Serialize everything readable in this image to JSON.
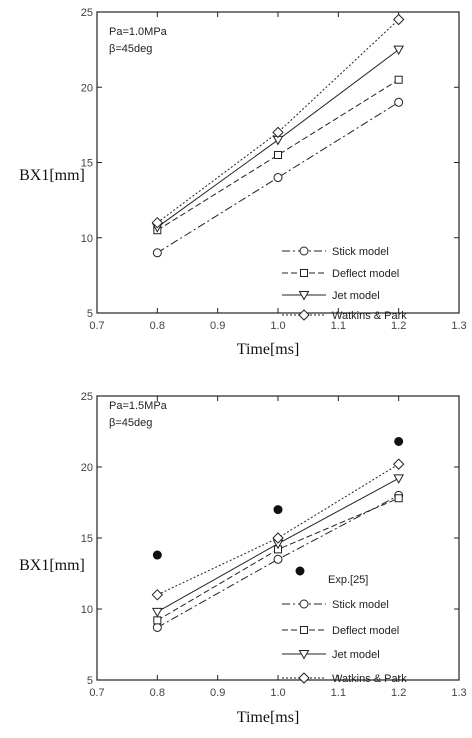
{
  "chart_data": [
    {
      "type": "line",
      "xlabel": "Time[ms]",
      "ylabel": "BX1[mm]",
      "xlim": [
        0.7,
        1.3
      ],
      "ylim": [
        5,
        25
      ],
      "xticks": [
        "0.7",
        "0.8",
        "0.9",
        "1.0",
        "1.1",
        "1.2",
        "1.3"
      ],
      "yticks": [
        "5",
        "10",
        "15",
        "20",
        "25"
      ],
      "annotations": [
        "Pa=1.0MPa",
        "β=45deg"
      ],
      "legend_position": "bottom-right",
      "x": [
        0.8,
        1.0,
        1.2
      ],
      "series": [
        {
          "name": "Stick model",
          "marker": "circle",
          "dash": "8,3,2,3",
          "values": [
            9.0,
            14.0,
            19.0
          ]
        },
        {
          "name": "Deflect model",
          "marker": "square",
          "dash": "6,3",
          "values": [
            10.5,
            15.5,
            20.5
          ]
        },
        {
          "name": "Jet model",
          "marker": "triangle-down",
          "dash": "",
          "values": [
            10.7,
            16.5,
            22.5
          ]
        },
        {
          "name": "Watkins & Park",
          "marker": "diamond",
          "dash": "2,2",
          "values": [
            11.0,
            17.0,
            24.5
          ]
        }
      ]
    },
    {
      "type": "line",
      "xlabel": "Time[ms]",
      "ylabel": "BX1[mm]",
      "xlim": [
        0.7,
        1.3
      ],
      "ylim": [
        5,
        25
      ],
      "xticks": [
        "0.7",
        "0.8",
        "0.9",
        "1.0",
        "1.1",
        "1.2",
        "1.3"
      ],
      "yticks": [
        "5",
        "10",
        "15",
        "20",
        "25"
      ],
      "annotations": [
        "Pa=1.5MPa",
        "β=45deg"
      ],
      "legend_position": "bottom-right",
      "x": [
        0.8,
        1.0,
        1.2
      ],
      "experiment": {
        "name": "Exp.[25]",
        "x": [
          0.8,
          1.0,
          1.2
        ],
        "values": [
          13.8,
          17.0,
          21.8
        ]
      },
      "series": [
        {
          "name": "Stick model",
          "marker": "circle",
          "dash": "8,3,2,3",
          "values": [
            8.7,
            13.5,
            18.0
          ]
        },
        {
          "name": "Deflect model",
          "marker": "square",
          "dash": "6,3",
          "values": [
            9.2,
            14.2,
            17.8
          ]
        },
        {
          "name": "Jet model",
          "marker": "triangle-down",
          "dash": "",
          "values": [
            9.8,
            14.6,
            19.2
          ]
        },
        {
          "name": "Watkins & Park",
          "marker": "diamond",
          "dash": "2,2",
          "values": [
            11.0,
            15.0,
            20.2
          ]
        }
      ]
    }
  ]
}
